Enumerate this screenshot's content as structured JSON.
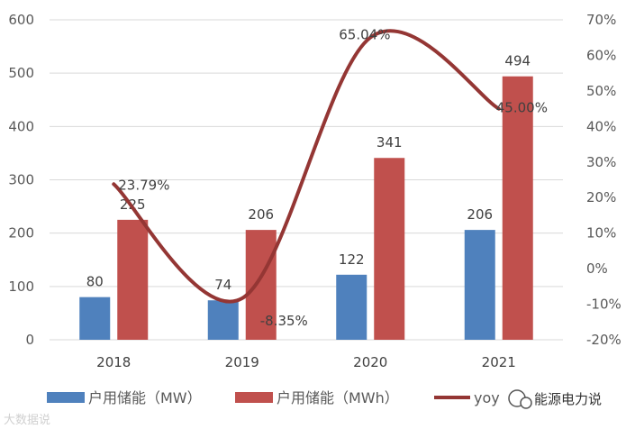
{
  "chart_data": {
    "type": "bar",
    "categories": [
      "2018",
      "2019",
      "2020",
      "2021"
    ],
    "series": [
      {
        "name": "户用储能（MW）",
        "kind": "bar",
        "axis": "left",
        "color": "#4f81bd",
        "values": [
          80,
          74,
          122,
          206
        ]
      },
      {
        "name": "户用储能（MWh）",
        "kind": "bar",
        "axis": "left",
        "color": "#c0504d",
        "values": [
          225,
          206,
          341,
          494
        ]
      },
      {
        "name": "yoy",
        "kind": "line",
        "axis": "right",
        "color": "#943634",
        "values": [
          23.79,
          -8.35,
          65.04,
          45.0
        ]
      }
    ],
    "bar_data_labels": [
      [
        "80",
        "74",
        "122",
        "206"
      ],
      [
        "225",
        "206",
        "341",
        "494"
      ]
    ],
    "line_data_labels": [
      "23.79%",
      "-8.35%",
      "65.04%",
      "45.00%"
    ],
    "y_left": {
      "min": 0,
      "max": 600,
      "ticks": [
        "0",
        "100",
        "200",
        "300",
        "400",
        "500",
        "600"
      ]
    },
    "y_right": {
      "min": -20,
      "max": 70,
      "ticks": [
        "-20%",
        "-10%",
        "0%",
        "10%",
        "20%",
        "30%",
        "40%",
        "50%",
        "60%",
        "70%"
      ]
    },
    "grid": true,
    "legend_position": "bottom"
  },
  "legend": {
    "items": [
      "户用储能（MW）",
      "户用储能（MWh）",
      "yoy"
    ]
  },
  "watermarks": {
    "left": "大数据说",
    "right": "能源电力说"
  }
}
